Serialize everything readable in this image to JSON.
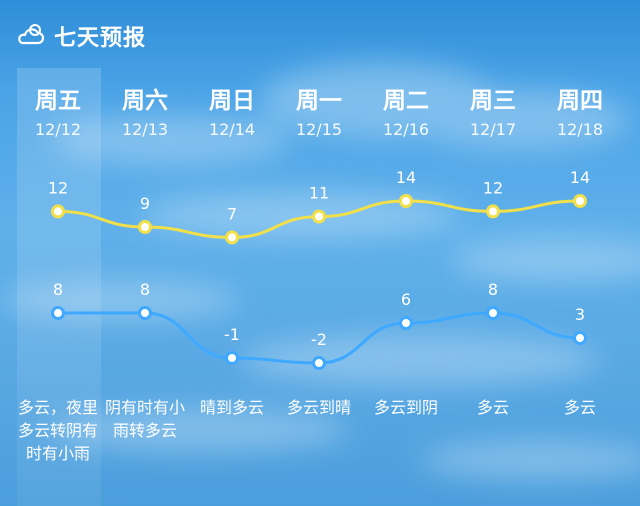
{
  "header": {
    "icon": "cloud-sun-icon",
    "title": "七天预报"
  },
  "colors": {
    "high_line": "#f2e04a",
    "low_line": "#3fa8ff",
    "point_fill": "#ffffff"
  },
  "days": [
    {
      "weekday": "周五",
      "date": "12/12",
      "high": 12,
      "low": 8,
      "condition": "多云，夜里多云转阴有时有小雨"
    },
    {
      "weekday": "周六",
      "date": "12/13",
      "high": 9,
      "low": 8,
      "condition": "阴有时有小雨转多云"
    },
    {
      "weekday": "周日",
      "date": "12/14",
      "high": 7,
      "low": -1,
      "condition": "晴到多云"
    },
    {
      "weekday": "周一",
      "date": "12/15",
      "high": 11,
      "low": -2,
      "condition": "多云到晴"
    },
    {
      "weekday": "周二",
      "date": "12/16",
      "high": 14,
      "low": 6,
      "condition": "多云到阴"
    },
    {
      "weekday": "周三",
      "date": "12/17",
      "high": 12,
      "low": 8,
      "condition": "多云"
    },
    {
      "weekday": "周四",
      "date": "12/18",
      "high": 14,
      "low": 3,
      "condition": "多云"
    }
  ]
}
